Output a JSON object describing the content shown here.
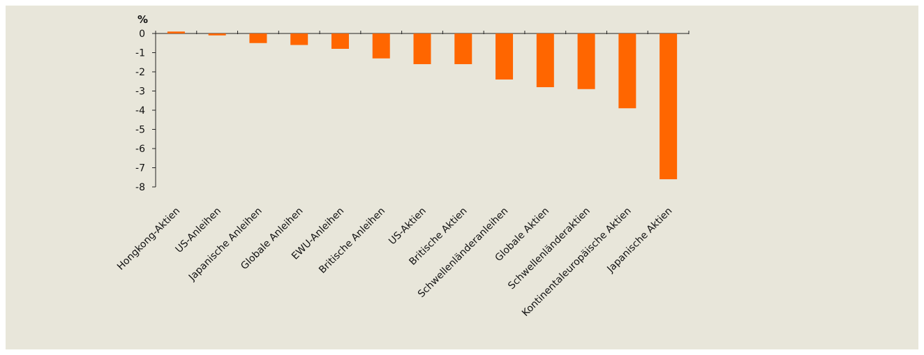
{
  "chart_data": {
    "type": "bar",
    "ylabel": "%",
    "ylim": [
      -8,
      0
    ],
    "yticks": [
      0,
      -1,
      -2,
      -3,
      -4,
      -5,
      -6,
      -7,
      -8
    ],
    "grid": false,
    "bar_color": "#ff6600",
    "background_color": "#e8e6da",
    "categories": [
      "Hongkong-Aktien",
      "US-Anleihen",
      "Japanische Anleihen",
      "Globale Anleihen",
      "EWU-Anleihen",
      "Britische Anleihen",
      "US-Aktien",
      "Britische Aktien",
      "Schwellenländeranleihen",
      "Globale Aktien",
      "Schwellenländeraktien",
      "Kontinentaleuropäische Aktien",
      "Japanische Aktien"
    ],
    "values": [
      0.1,
      -0.1,
      -0.5,
      -0.6,
      -0.8,
      -1.3,
      -1.6,
      -1.6,
      -2.4,
      -2.8,
      -2.9,
      -3.9,
      -7.6
    ]
  }
}
